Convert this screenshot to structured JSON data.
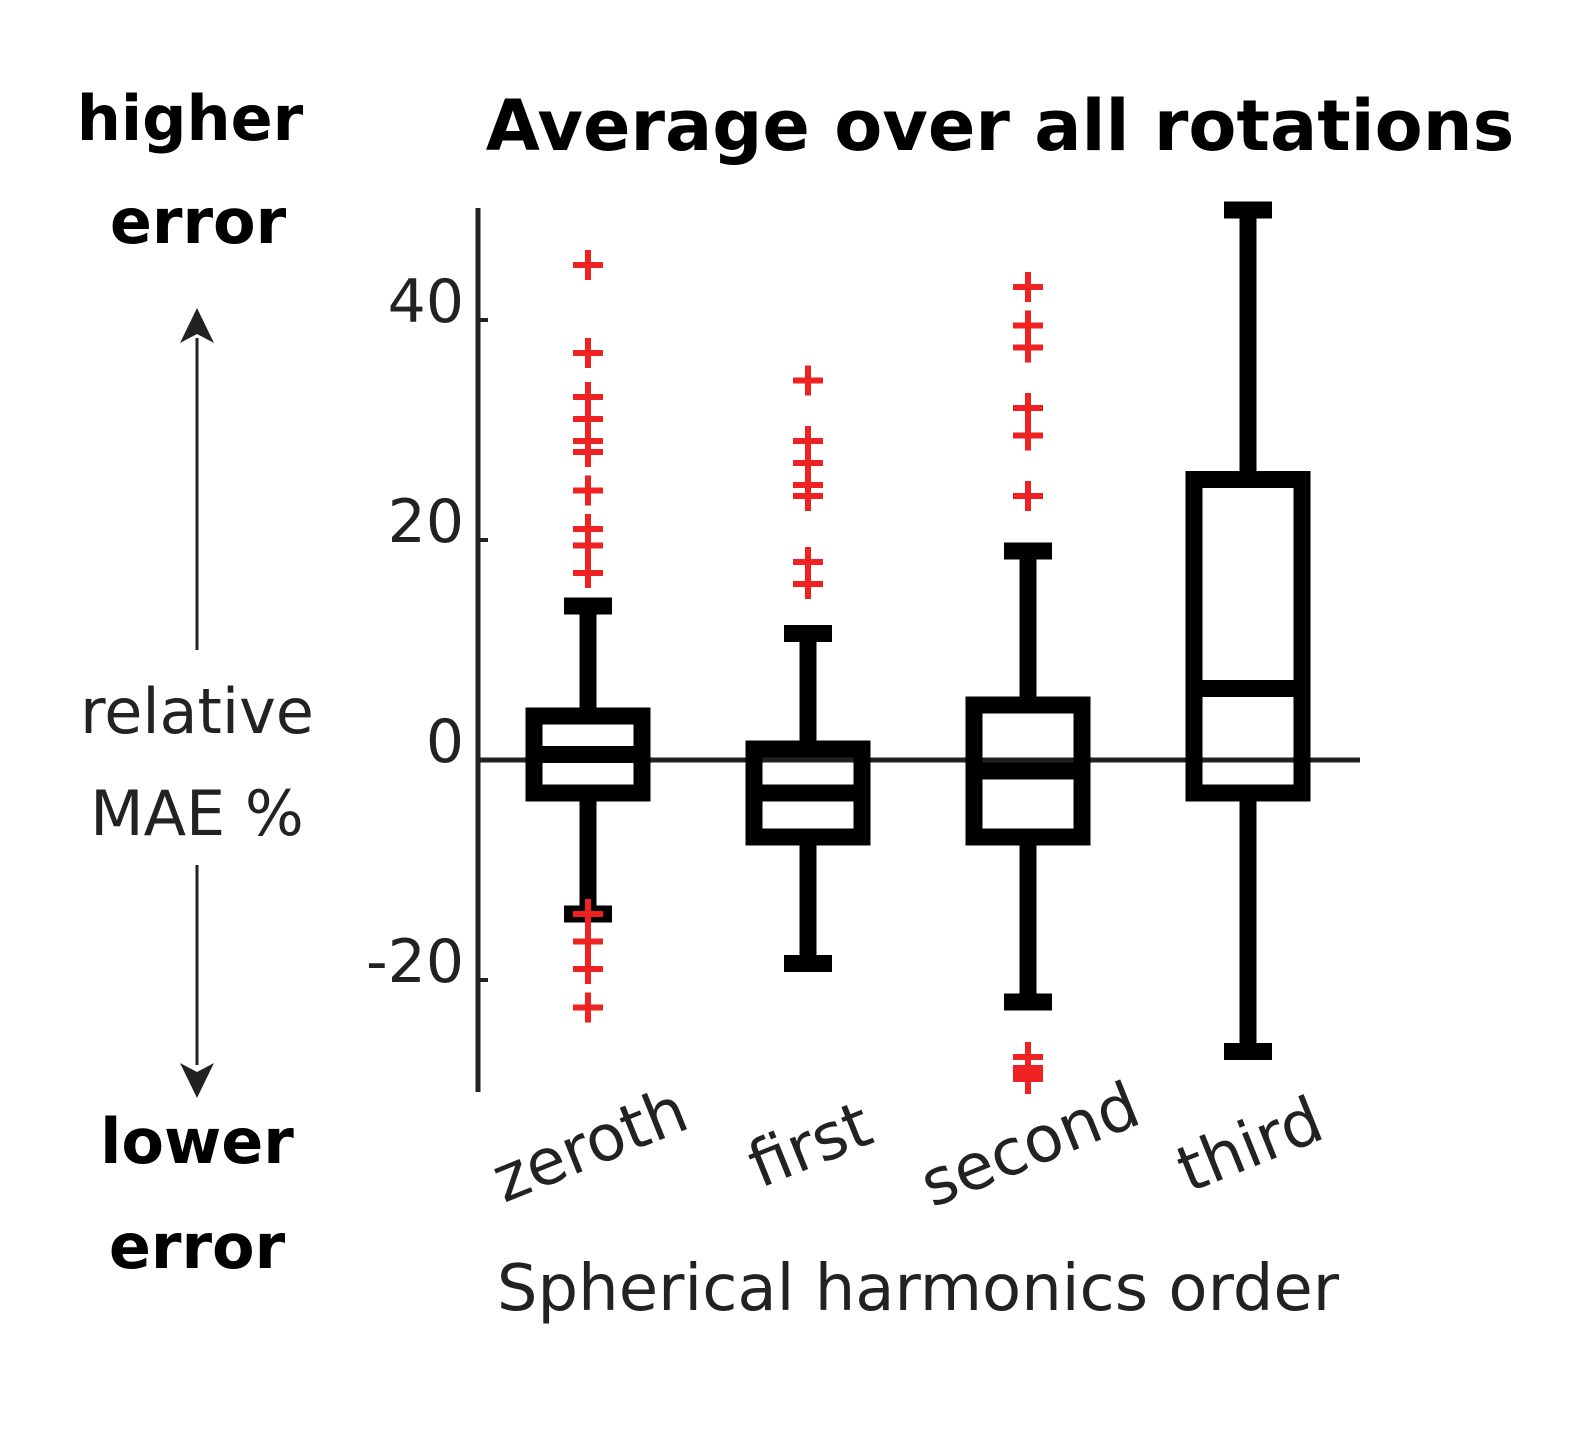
{
  "chart_data": {
    "type": "box",
    "title": "Average over all rotations",
    "xlabel": "Spherical harmonics order",
    "ylabel": [
      "relative",
      "MAE %"
    ],
    "annotation_top": [
      "higher",
      "error"
    ],
    "annotation_bottom": [
      "lower",
      "error"
    ],
    "ylim": [
      -30,
      50
    ],
    "yticks": [
      40,
      20,
      0,
      -20
    ],
    "ytick_labels": [
      "40",
      "20",
      "0",
      "-20"
    ],
    "zero_line": true,
    "categories": [
      "zeroth",
      "first",
      "second",
      "third"
    ],
    "boxes": [
      {
        "name": "zeroth",
        "whisker_low": -14,
        "q1": -3,
        "median": 0.5,
        "q3": 4,
        "whisker_high": 14,
        "outliers": [
          45,
          37,
          33,
          31,
          29,
          28,
          24.5,
          21,
          19.5,
          17,
          -14,
          -16.5,
          -19,
          -22.5
        ]
      },
      {
        "name": "first",
        "whisker_low": -18.5,
        "q1": -7,
        "median": -3,
        "q3": 1,
        "whisker_high": 11.5,
        "outliers": [
          34.5,
          29,
          27,
          25,
          24,
          18,
          16
        ]
      },
      {
        "name": "second",
        "whisker_low": -22,
        "q1": -7,
        "median": -1,
        "q3": 5,
        "whisker_high": 19,
        "outliers": [
          43,
          39.5,
          37.5,
          32,
          29.5,
          24,
          -27,
          -28,
          -28.5,
          -29
        ]
      },
      {
        "name": "third",
        "whisker_low": -26.5,
        "q1": -3,
        "median": 6.5,
        "q3": 25.5,
        "whisker_high": 50,
        "outliers": []
      }
    ],
    "colors": {
      "box": "#000000",
      "outlier": "#ee2222",
      "axis": "#222222"
    },
    "grid": false,
    "legend": "none"
  }
}
